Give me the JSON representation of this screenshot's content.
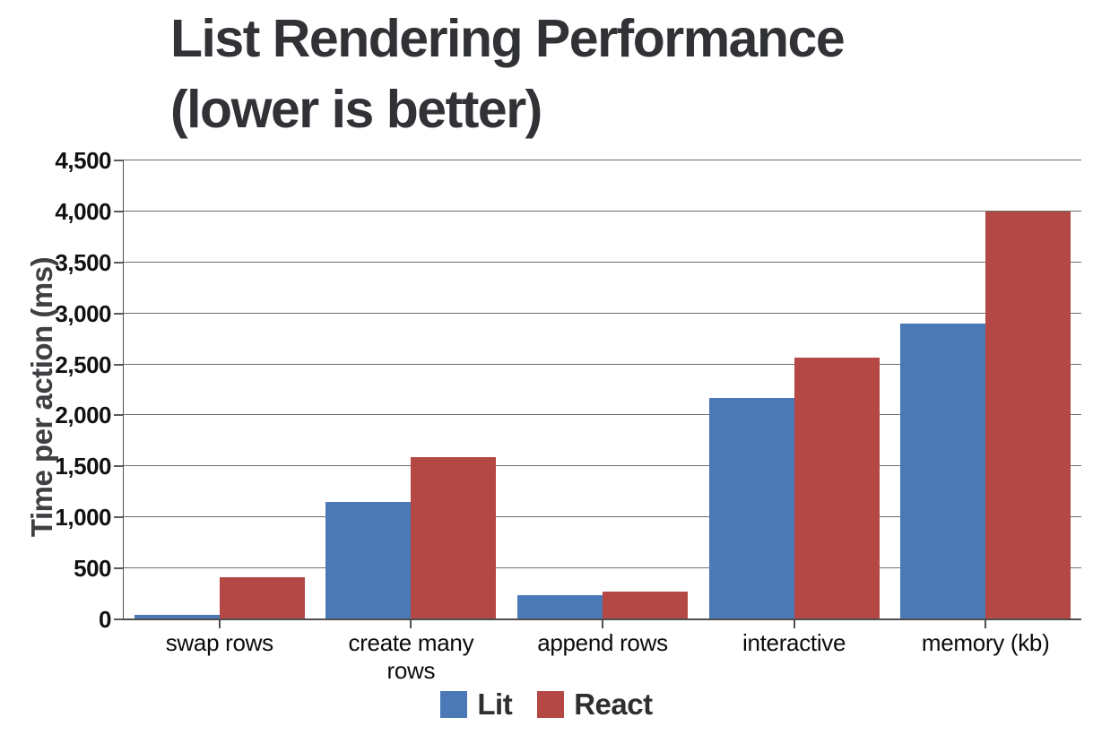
{
  "chart_data": {
    "type": "bar",
    "title": "List Rendering Performance (lower is better)",
    "title_lines": [
      "List Rendering Performance",
      "(lower is better)"
    ],
    "ylabel": "Time per action (ms)",
    "xlabel": "",
    "ylim": [
      0,
      4500
    ],
    "ytick_step": 500,
    "yticks": [
      {
        "value": 0,
        "label": "0"
      },
      {
        "value": 500,
        "label": "500"
      },
      {
        "value": 1000,
        "label": "1,000"
      },
      {
        "value": 1500,
        "label": "1,500"
      },
      {
        "value": 2000,
        "label": "2,000"
      },
      {
        "value": 2500,
        "label": "2,500"
      },
      {
        "value": 3000,
        "label": "3,000"
      },
      {
        "value": 3500,
        "label": "3,500"
      },
      {
        "value": 4000,
        "label": "4,000"
      },
      {
        "value": 4500,
        "label": "4,500"
      }
    ],
    "categories": [
      "swap rows",
      "create many rows",
      "append rows",
      "interactive",
      "memory (kb)"
    ],
    "series": [
      {
        "name": "Lit",
        "color": "#4a79b5",
        "values": [
          40,
          1150,
          240,
          2170,
          2900
        ]
      },
      {
        "name": "React",
        "color": "#b44845",
        "values": [
          410,
          1590,
          270,
          2570,
          4000
        ]
      }
    ],
    "grid": true,
    "legend_position": "bottom"
  },
  "colors": {
    "lit_blue": "#4a79b5",
    "react_red": "#b44845",
    "title_text": "#303236",
    "axis_text": "#111111",
    "gridline": "#6e6e6e",
    "axis_line": "#4f4f4f",
    "background": "#ffffff"
  }
}
